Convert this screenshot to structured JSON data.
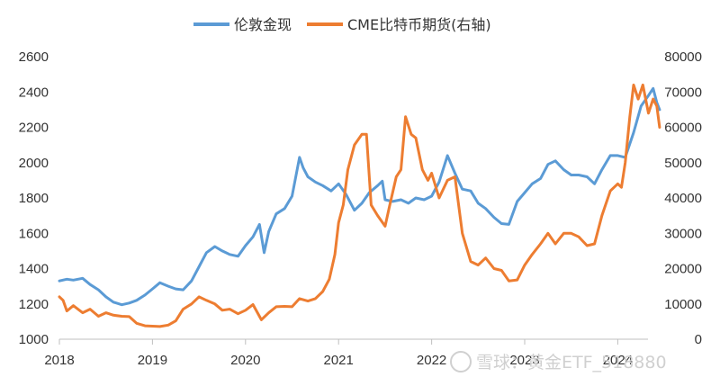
{
  "chart_data": {
    "type": "line",
    "title": "",
    "legend_position": "top-center",
    "x_ticks": [
      "2018",
      "2019",
      "2020",
      "2021",
      "2022",
      "2023",
      "2024"
    ],
    "y_left": {
      "ticks": [
        "1000",
        "1200",
        "1400",
        "1600",
        "1800",
        "2000",
        "2200",
        "2400",
        "2600"
      ],
      "range": [
        1000,
        2600
      ]
    },
    "y_right": {
      "ticks": [
        "0",
        "10000",
        "20000",
        "30000",
        "40000",
        "50000",
        "60000",
        "70000",
        "80000"
      ],
      "range": [
        0,
        80000
      ]
    },
    "x_range": [
      2018.0,
      2024.45
    ],
    "series": [
      {
        "name": "伦敦金现",
        "axis": "left",
        "color": "#5B9BD5",
        "points": [
          [
            2018.0,
            1330
          ],
          [
            2018.08,
            1340
          ],
          [
            2018.15,
            1335
          ],
          [
            2018.25,
            1345
          ],
          [
            2018.33,
            1310
          ],
          [
            2018.42,
            1280
          ],
          [
            2018.5,
            1240
          ],
          [
            2018.58,
            1210
          ],
          [
            2018.67,
            1195
          ],
          [
            2018.75,
            1205
          ],
          [
            2018.83,
            1220
          ],
          [
            2018.92,
            1250
          ],
          [
            2019.0,
            1285
          ],
          [
            2019.08,
            1320
          ],
          [
            2019.17,
            1300
          ],
          [
            2019.25,
            1285
          ],
          [
            2019.33,
            1280
          ],
          [
            2019.42,
            1330
          ],
          [
            2019.5,
            1410
          ],
          [
            2019.58,
            1490
          ],
          [
            2019.67,
            1525
          ],
          [
            2019.75,
            1500
          ],
          [
            2019.83,
            1480
          ],
          [
            2019.92,
            1470
          ],
          [
            2020.0,
            1530
          ],
          [
            2020.08,
            1580
          ],
          [
            2020.15,
            1650
          ],
          [
            2020.2,
            1490
          ],
          [
            2020.25,
            1610
          ],
          [
            2020.33,
            1710
          ],
          [
            2020.42,
            1740
          ],
          [
            2020.5,
            1810
          ],
          [
            2020.58,
            2030
          ],
          [
            2020.62,
            1970
          ],
          [
            2020.67,
            1920
          ],
          [
            2020.75,
            1890
          ],
          [
            2020.83,
            1870
          ],
          [
            2020.92,
            1840
          ],
          [
            2021.0,
            1880
          ],
          [
            2021.08,
            1820
          ],
          [
            2021.17,
            1730
          ],
          [
            2021.25,
            1770
          ],
          [
            2021.33,
            1830
          ],
          [
            2021.42,
            1870
          ],
          [
            2021.47,
            1895
          ],
          [
            2021.5,
            1790
          ],
          [
            2021.58,
            1780
          ],
          [
            2021.67,
            1790
          ],
          [
            2021.75,
            1770
          ],
          [
            2021.83,
            1800
          ],
          [
            2021.92,
            1790
          ],
          [
            2022.0,
            1810
          ],
          [
            2022.08,
            1890
          ],
          [
            2022.17,
            2040
          ],
          [
            2022.25,
            1940
          ],
          [
            2022.33,
            1850
          ],
          [
            2022.42,
            1840
          ],
          [
            2022.5,
            1770
          ],
          [
            2022.58,
            1740
          ],
          [
            2022.67,
            1690
          ],
          [
            2022.75,
            1655
          ],
          [
            2022.83,
            1650
          ],
          [
            2022.92,
            1780
          ],
          [
            2023.0,
            1830
          ],
          [
            2023.08,
            1880
          ],
          [
            2023.17,
            1910
          ],
          [
            2023.25,
            1990
          ],
          [
            2023.33,
            2010
          ],
          [
            2023.42,
            1960
          ],
          [
            2023.5,
            1930
          ],
          [
            2023.58,
            1930
          ],
          [
            2023.67,
            1920
          ],
          [
            2023.75,
            1880
          ],
          [
            2023.83,
            1960
          ],
          [
            2023.92,
            2040
          ],
          [
            2024.0,
            2040
          ],
          [
            2024.08,
            2030
          ],
          [
            2024.17,
            2170
          ],
          [
            2024.25,
            2320
          ],
          [
            2024.33,
            2380
          ],
          [
            2024.38,
            2420
          ],
          [
            2024.42,
            2340
          ],
          [
            2024.45,
            2300
          ]
        ]
      },
      {
        "name": "CME比特币期货(右轴)",
        "axis": "right",
        "color": "#ED7D31",
        "points": [
          [
            2018.0,
            12000
          ],
          [
            2018.04,
            11000
          ],
          [
            2018.08,
            8000
          ],
          [
            2018.15,
            9500
          ],
          [
            2018.25,
            7500
          ],
          [
            2018.33,
            8500
          ],
          [
            2018.42,
            6500
          ],
          [
            2018.5,
            7500
          ],
          [
            2018.58,
            6800
          ],
          [
            2018.67,
            6500
          ],
          [
            2018.75,
            6400
          ],
          [
            2018.83,
            4500
          ],
          [
            2018.92,
            3800
          ],
          [
            2019.0,
            3700
          ],
          [
            2019.08,
            3600
          ],
          [
            2019.17,
            4000
          ],
          [
            2019.25,
            5200
          ],
          [
            2019.33,
            8500
          ],
          [
            2019.42,
            10000
          ],
          [
            2019.5,
            12000
          ],
          [
            2019.58,
            11000
          ],
          [
            2019.67,
            10000
          ],
          [
            2019.75,
            8200
          ],
          [
            2019.83,
            8500
          ],
          [
            2019.92,
            7200
          ],
          [
            2020.0,
            8200
          ],
          [
            2020.08,
            9800
          ],
          [
            2020.17,
            5500
          ],
          [
            2020.25,
            7500
          ],
          [
            2020.33,
            9200
          ],
          [
            2020.42,
            9300
          ],
          [
            2020.5,
            9200
          ],
          [
            2020.58,
            11500
          ],
          [
            2020.67,
            10800
          ],
          [
            2020.75,
            11500
          ],
          [
            2020.83,
            13500
          ],
          [
            2020.9,
            17000
          ],
          [
            2020.96,
            24000
          ],
          [
            2021.0,
            33000
          ],
          [
            2021.05,
            38000
          ],
          [
            2021.1,
            48000
          ],
          [
            2021.17,
            55000
          ],
          [
            2021.25,
            58000
          ],
          [
            2021.3,
            58000
          ],
          [
            2021.35,
            38000
          ],
          [
            2021.42,
            35000
          ],
          [
            2021.5,
            32000
          ],
          [
            2021.55,
            38000
          ],
          [
            2021.62,
            46000
          ],
          [
            2021.67,
            48000
          ],
          [
            2021.72,
            63000
          ],
          [
            2021.78,
            58000
          ],
          [
            2021.83,
            57000
          ],
          [
            2021.9,
            48000
          ],
          [
            2021.96,
            45000
          ],
          [
            2022.0,
            47000
          ],
          [
            2022.08,
            40000
          ],
          [
            2022.17,
            45000
          ],
          [
            2022.25,
            46000
          ],
          [
            2022.33,
            30000
          ],
          [
            2022.42,
            22000
          ],
          [
            2022.5,
            21000
          ],
          [
            2022.58,
            23000
          ],
          [
            2022.67,
            20000
          ],
          [
            2022.75,
            19500
          ],
          [
            2022.83,
            16500
          ],
          [
            2022.92,
            16800
          ],
          [
            2023.0,
            21000
          ],
          [
            2023.08,
            24000
          ],
          [
            2023.17,
            27000
          ],
          [
            2023.25,
            30000
          ],
          [
            2023.33,
            27000
          ],
          [
            2023.42,
            30000
          ],
          [
            2023.5,
            30000
          ],
          [
            2023.58,
            29000
          ],
          [
            2023.67,
            26500
          ],
          [
            2023.75,
            27000
          ],
          [
            2023.83,
            35000
          ],
          [
            2023.92,
            42000
          ],
          [
            2024.0,
            44000
          ],
          [
            2024.04,
            43000
          ],
          [
            2024.08,
            50000
          ],
          [
            2024.13,
            63000
          ],
          [
            2024.17,
            72000
          ],
          [
            2024.22,
            68000
          ],
          [
            2024.27,
            72000
          ],
          [
            2024.33,
            64000
          ],
          [
            2024.38,
            68000
          ],
          [
            2024.42,
            66000
          ],
          [
            2024.45,
            60000
          ]
        ]
      }
    ]
  },
  "watermark": {
    "text": "雪球：黄金ETF_518880"
  }
}
